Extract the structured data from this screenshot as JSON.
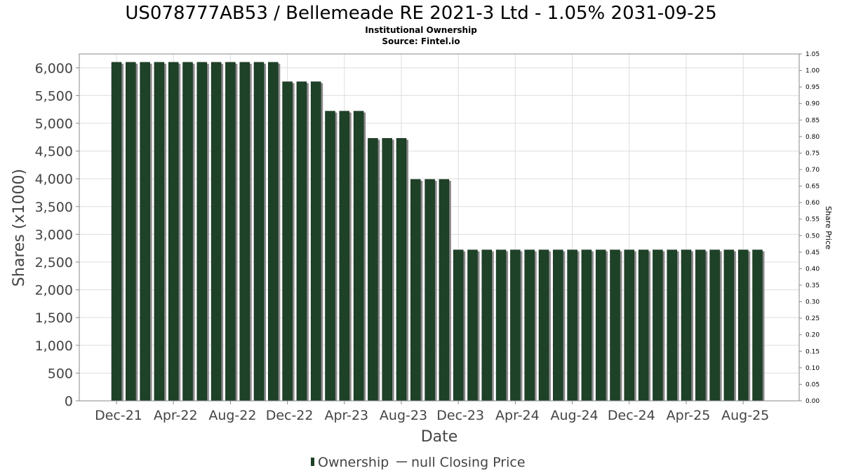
{
  "title": "US078777AB53 / Bellemeade RE 2021-3 Ltd - 1.05% 2031-09-25",
  "subtitle_1": "Institutional Ownership",
  "subtitle_2": "Source: Fintel.io",
  "colors": {
    "bar": "#1e4227",
    "bar_shadow": "#8a8a8a",
    "grid": "#dddddd",
    "frame": "#888888"
  },
  "chart_data": {
    "type": "bar",
    "xlabel": "Date",
    "ylabel": "Shares (x1000)",
    "y2label": "Share Price",
    "ylim": [
      0,
      6250
    ],
    "y2lim": [
      0,
      1.05
    ],
    "y_ticks": [
      "0",
      "500",
      "1,000",
      "1,500",
      "2,000",
      "2,500",
      "3,000",
      "3,500",
      "4,000",
      "4,500",
      "5,000",
      "5,500",
      "6,000"
    ],
    "y2_ticks": [
      "0.00",
      "0.05",
      "0.10",
      "0.15",
      "0.20",
      "0.25",
      "0.30",
      "0.35",
      "0.40",
      "0.45",
      "0.50",
      "0.55",
      "0.60",
      "0.65",
      "0.70",
      "0.75",
      "0.80",
      "0.85",
      "0.90",
      "0.95",
      "1.00",
      "1.05"
    ],
    "x_tick_labels": [
      "Dec-21",
      "Apr-22",
      "Aug-22",
      "Dec-22",
      "Apr-23",
      "Aug-23",
      "Dec-23",
      "Apr-24",
      "Aug-24",
      "Dec-24",
      "Apr-25",
      "Aug-25"
    ],
    "grid": true,
    "legend_position": "bottom-center",
    "series": [
      {
        "name": "Ownership",
        "values": [
          6100,
          6100,
          6100,
          6100,
          6100,
          6100,
          6100,
          6100,
          6100,
          6100,
          6100,
          6100,
          5750,
          5750,
          5750,
          5220,
          5220,
          5220,
          4730,
          4730,
          4730,
          3990,
          3990,
          3990,
          2720,
          2720,
          2720,
          2720,
          2720,
          2720,
          2720,
          2720,
          2720,
          2720,
          2720,
          2720,
          2720,
          2720,
          2720,
          2720,
          2720,
          2720,
          2720,
          2720,
          2720,
          2720
        ]
      }
    ],
    "legend": [
      {
        "label": "Ownership",
        "symbol": "bar"
      },
      {
        "label": "null Closing Price",
        "symbol": "line"
      }
    ]
  }
}
